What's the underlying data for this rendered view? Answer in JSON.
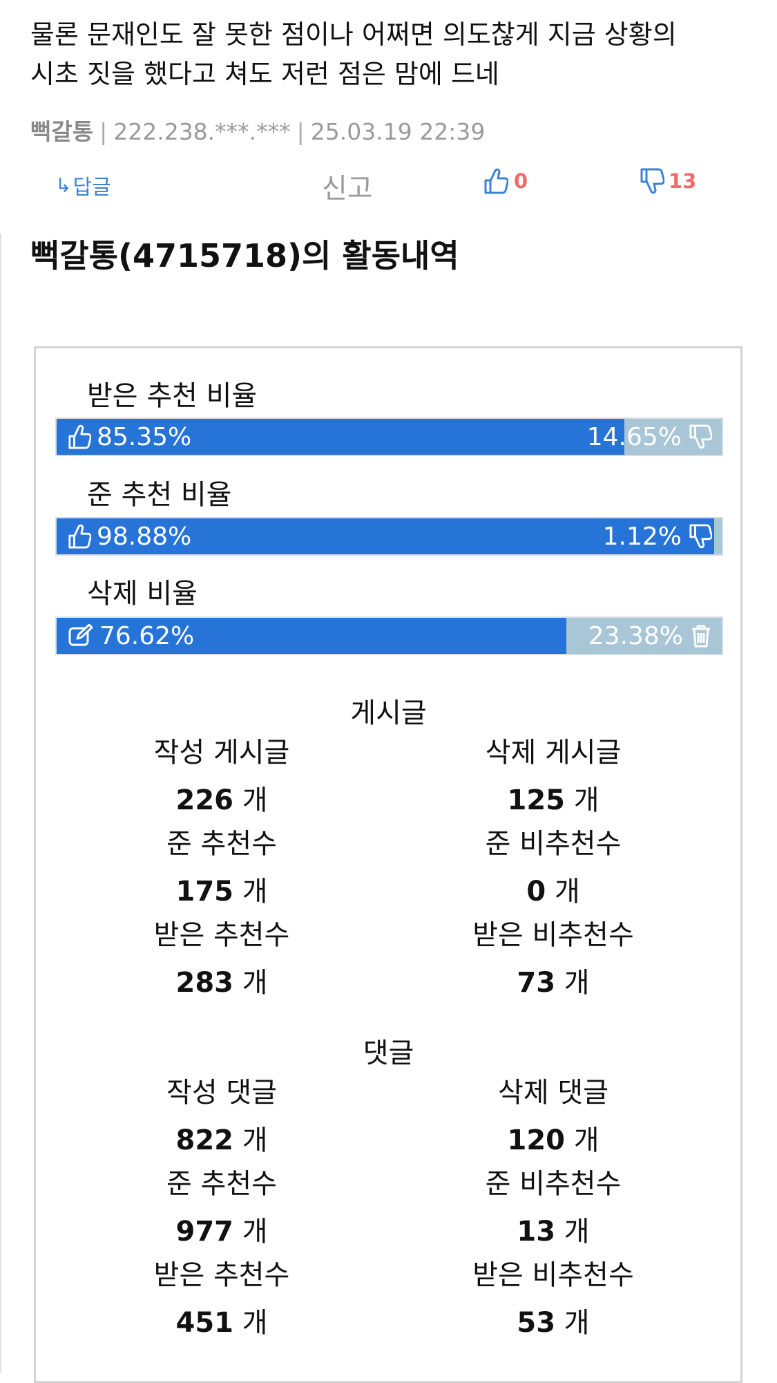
{
  "comment": {
    "line1": "물론 문재인도 잘 못한 점이나 어쩌면 의도찮게 지금 상황의",
    "line2": "시초 짓을 했다고 쳐도 저런 점은 맘에 드네",
    "author": "뻑갈통",
    "ip": "222.238.***.***",
    "datetime": "25.03.19 22:39"
  },
  "actions": {
    "reply_arrow": "↳",
    "reply_label": "답글",
    "report_label": "신고",
    "upvotes": "0",
    "downvotes": "13",
    "accent_color": "#3b82d6",
    "count_color": "#ef6b6b"
  },
  "activity": {
    "title": "뻑갈통(4715718)의 활동내역",
    "ratios": [
      {
        "label": "받은 추천 비율",
        "left": "85.35%",
        "right": "14.65%",
        "fraction": 0.8535,
        "left_icon": "thumbs-up-icon",
        "right_icon": "thumbs-down-icon"
      },
      {
        "label": "준 추천 비율",
        "left": "98.88%",
        "right": "1.12%",
        "fraction": 0.9888,
        "left_icon": "thumbs-up-icon",
        "right_icon": "thumbs-down-icon"
      },
      {
        "label": "삭제 비율",
        "left": "76.62%",
        "right": "23.38%",
        "fraction": 0.7662,
        "left_icon": "edit-icon",
        "right_icon": "trash-icon"
      }
    ],
    "bar_colors": {
      "fill": "#2774d8",
      "rest": "#a9c6d6"
    },
    "unit": "개",
    "posts": {
      "title": "게시글",
      "stats": [
        {
          "label": "작성 게시글",
          "value": "226"
        },
        {
          "label": "삭제 게시글",
          "value": "125"
        },
        {
          "label": "준 추천수",
          "value": "175"
        },
        {
          "label": "준 비추천수",
          "value": "0"
        },
        {
          "label": "받은 추천수",
          "value": "283"
        },
        {
          "label": "받은 비추천수",
          "value": "73"
        }
      ]
    },
    "comments": {
      "title": "댓글",
      "stats": [
        {
          "label": "작성 댓글",
          "value": "822"
        },
        {
          "label": "삭제 댓글",
          "value": "120"
        },
        {
          "label": "준 추천수",
          "value": "977"
        },
        {
          "label": "준 비추천수",
          "value": "13"
        },
        {
          "label": "받은 추천수",
          "value": "451"
        },
        {
          "label": "받은 비추천수",
          "value": "53"
        }
      ]
    }
  }
}
